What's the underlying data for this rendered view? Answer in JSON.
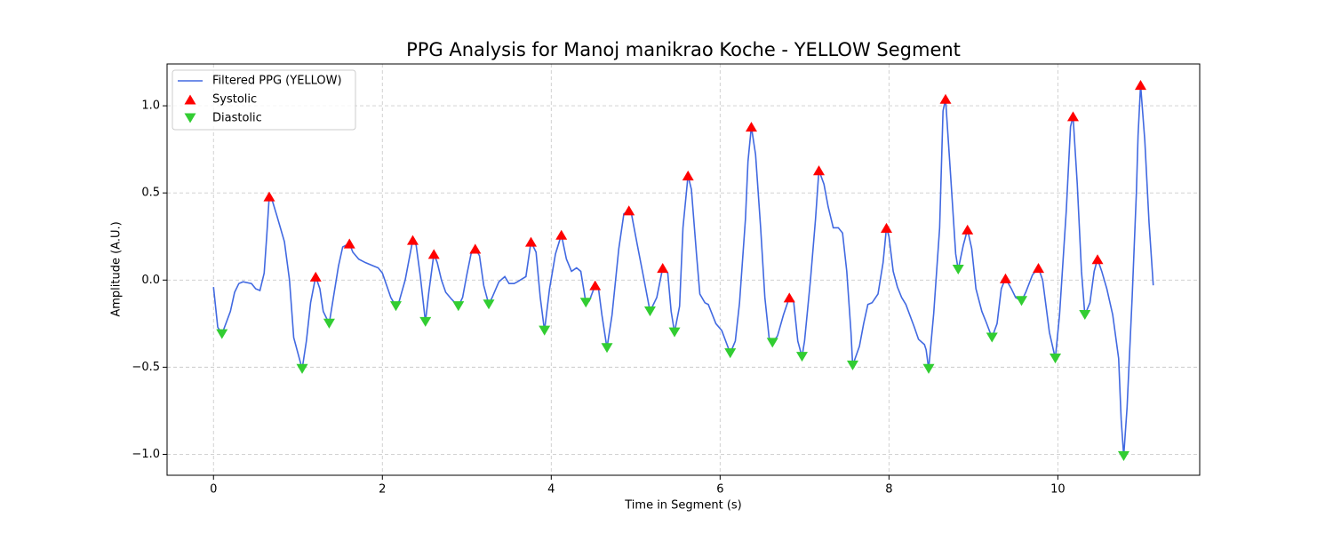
{
  "chart_data": {
    "type": "line",
    "title": "PPG Analysis for Manoj manikrao Koche - YELLOW Segment",
    "xlabel": "Time in Segment (s)",
    "ylabel": "Amplitude (A.U.)",
    "xlim": [
      -0.55,
      11.68
    ],
    "ylim": [
      -1.12,
      1.24
    ],
    "xticks": [
      0,
      2,
      4,
      6,
      8,
      10
    ],
    "yticks": [
      {
        "value": -1.0,
        "label": "−1.0"
      },
      {
        "value": -0.5,
        "label": "−0.5"
      },
      {
        "value": 0.0,
        "label": "0.0"
      },
      {
        "value": 0.5,
        "label": "0.5"
      },
      {
        "value": 1.0,
        "label": "1.0"
      }
    ],
    "grid": true,
    "legend": "upper left",
    "series": [
      {
        "name": "Filtered PPG (YELLOW)",
        "type": "line",
        "color": "#4169e1",
        "x": [
          0,
          0.05,
          0.1,
          0.2,
          0.25,
          0.3,
          0.35,
          0.45,
          0.5,
          0.55,
          0.6,
          0.63,
          0.66,
          0.7,
          0.75,
          0.84,
          0.9,
          0.95,
          1.05,
          1.1,
          1.15,
          1.21,
          1.26,
          1.3,
          1.37,
          1.42,
          1.48,
          1.53,
          1.61,
          1.65,
          1.72,
          1.8,
          1.9,
          1.95,
          2.0,
          2.05,
          2.1,
          2.16,
          2.2,
          2.27,
          2.36,
          2.4,
          2.45,
          2.51,
          2.55,
          2.61,
          2.65,
          2.7,
          2.75,
          2.82,
          2.9,
          2.95,
          3.0,
          3.05,
          3.1,
          3.15,
          3.2,
          3.26,
          3.3,
          3.38,
          3.45,
          3.5,
          3.56,
          3.6,
          3.7,
          3.76,
          3.82,
          3.87,
          3.92,
          3.98,
          4.05,
          4.12,
          4.18,
          4.24,
          4.3,
          4.35,
          4.41,
          4.45,
          4.52,
          4.56,
          4.6,
          4.66,
          4.72,
          4.8,
          4.86,
          4.92,
          4.95,
          5.02,
          5.1,
          5.17,
          5.25,
          5.32,
          5.38,
          5.42,
          5.46,
          5.52,
          5.56,
          5.62,
          5.66,
          5.72,
          5.76,
          5.82,
          5.86,
          5.95,
          6.02,
          6.12,
          6.18,
          6.23,
          6.3,
          6.33,
          6.37,
          6.42,
          6.48,
          6.53,
          6.58,
          6.62,
          6.68,
          6.75,
          6.82,
          6.87,
          6.92,
          6.97,
          7.0,
          7.07,
          7.13,
          7.17,
          7.23,
          7.28,
          7.34,
          7.4,
          7.45,
          7.5,
          7.55,
          7.57,
          7.65,
          7.7,
          7.75,
          7.8,
          7.87,
          7.93,
          7.97,
          8.0,
          8.05,
          8.1,
          8.15,
          8.2,
          8.3,
          8.35,
          8.42,
          8.44,
          8.47,
          8.53,
          8.6,
          8.64,
          8.67,
          8.73,
          8.79,
          8.82,
          8.88,
          8.93,
          8.98,
          9.03,
          9.1,
          9.15,
          9.22,
          9.28,
          9.33,
          9.38,
          9.45,
          9.5,
          9.57,
          9.62,
          9.7,
          9.77,
          9.82,
          9.9,
          9.97,
          10.02,
          10.1,
          10.15,
          10.18,
          10.23,
          10.28,
          10.32,
          10.38,
          10.43,
          10.47,
          10.52,
          10.58,
          10.65,
          10.72,
          10.75,
          10.78,
          10.82,
          10.88,
          10.93,
          10.95,
          10.98,
          11.03,
          11.08,
          11.13
        ],
        "values": [
          -0.04,
          -0.27,
          -0.31,
          -0.18,
          -0.07,
          -0.02,
          -0.01,
          -0.02,
          -0.05,
          -0.06,
          0.04,
          0.25,
          0.48,
          0.45,
          0.37,
          0.22,
          0.0,
          -0.33,
          -0.51,
          -0.35,
          -0.13,
          0.02,
          -0.05,
          -0.18,
          -0.25,
          -0.1,
          0.08,
          0.19,
          0.21,
          0.16,
          0.12,
          0.1,
          0.08,
          0.07,
          0.04,
          -0.03,
          -0.1,
          -0.15,
          -0.12,
          0.0,
          0.23,
          0.2,
          0.02,
          -0.24,
          -0.07,
          0.15,
          0.1,
          0.0,
          -0.07,
          -0.11,
          -0.15,
          -0.1,
          0.03,
          0.15,
          0.18,
          0.14,
          -0.03,
          -0.14,
          -0.1,
          -0.01,
          0.02,
          -0.02,
          -0.02,
          -0.01,
          0.02,
          0.22,
          0.16,
          -0.1,
          -0.29,
          -0.05,
          0.15,
          0.26,
          0.12,
          0.05,
          0.07,
          0.05,
          -0.13,
          -0.12,
          -0.03,
          -0.05,
          -0.2,
          -0.39,
          -0.2,
          0.18,
          0.38,
          0.4,
          0.38,
          0.2,
          0.0,
          -0.18,
          -0.1,
          0.07,
          0.04,
          -0.18,
          -0.3,
          -0.15,
          0.3,
          0.6,
          0.52,
          0.15,
          -0.08,
          -0.13,
          -0.14,
          -0.25,
          -0.29,
          -0.42,
          -0.35,
          -0.13,
          0.35,
          0.68,
          0.88,
          0.72,
          0.3,
          -0.1,
          -0.33,
          -0.36,
          -0.32,
          -0.2,
          -0.1,
          -0.12,
          -0.35,
          -0.44,
          -0.35,
          0.0,
          0.35,
          0.63,
          0.55,
          0.42,
          0.3,
          0.3,
          0.27,
          0.05,
          -0.3,
          -0.49,
          -0.38,
          -0.25,
          -0.14,
          -0.13,
          -0.08,
          0.1,
          0.3,
          0.25,
          0.05,
          -0.04,
          -0.1,
          -0.14,
          -0.27,
          -0.34,
          -0.37,
          -0.4,
          -0.51,
          -0.19,
          0.3,
          0.97,
          1.04,
          0.6,
          0.15,
          0.06,
          0.2,
          0.29,
          0.18,
          -0.05,
          -0.18,
          -0.24,
          -0.33,
          -0.25,
          -0.05,
          0.01,
          -0.05,
          -0.1,
          -0.12,
          -0.07,
          0.03,
          0.07,
          0.0,
          -0.3,
          -0.45,
          -0.2,
          0.4,
          0.88,
          0.94,
          0.55,
          0.05,
          -0.2,
          -0.13,
          0.05,
          0.12,
          0.05,
          -0.05,
          -0.2,
          -0.45,
          -0.8,
          -1.01,
          -0.73,
          -0.1,
          0.5,
          0.83,
          1.12,
          0.8,
          0.33,
          -0.03
        ]
      },
      {
        "name": "Systolic",
        "type": "scatter",
        "marker": "^",
        "color": "#ff0000",
        "x": [
          0.66,
          1.21,
          1.61,
          2.36,
          2.61,
          3.1,
          3.76,
          4.12,
          4.52,
          4.92,
          5.32,
          5.62,
          6.37,
          6.82,
          7.17,
          7.97,
          8.67,
          8.93,
          9.38,
          9.77,
          10.18,
          10.47,
          10.98
        ],
        "values": [
          0.48,
          0.02,
          0.21,
          0.23,
          0.15,
          0.18,
          0.22,
          0.26,
          -0.03,
          0.4,
          0.07,
          0.6,
          0.88,
          -0.1,
          0.63,
          0.3,
          1.04,
          0.29,
          0.01,
          0.07,
          0.94,
          0.12,
          1.12
        ]
      },
      {
        "name": "Diastolic",
        "type": "scatter",
        "marker": "v",
        "color": "#32cd32",
        "x": [
          0.1,
          1.05,
          1.37,
          2.16,
          2.51,
          2.9,
          3.26,
          3.92,
          4.41,
          4.66,
          5.17,
          5.46,
          6.12,
          6.62,
          6.97,
          7.57,
          8.47,
          8.82,
          9.22,
          9.57,
          9.97,
          10.32,
          10.78
        ],
        "values": [
          -0.31,
          -0.51,
          -0.25,
          -0.15,
          -0.24,
          -0.15,
          -0.14,
          -0.29,
          -0.13,
          -0.39,
          -0.18,
          -0.3,
          -0.42,
          -0.36,
          -0.44,
          -0.49,
          -0.51,
          0.06,
          -0.33,
          -0.12,
          -0.45,
          -0.2,
          -1.01
        ]
      }
    ]
  }
}
